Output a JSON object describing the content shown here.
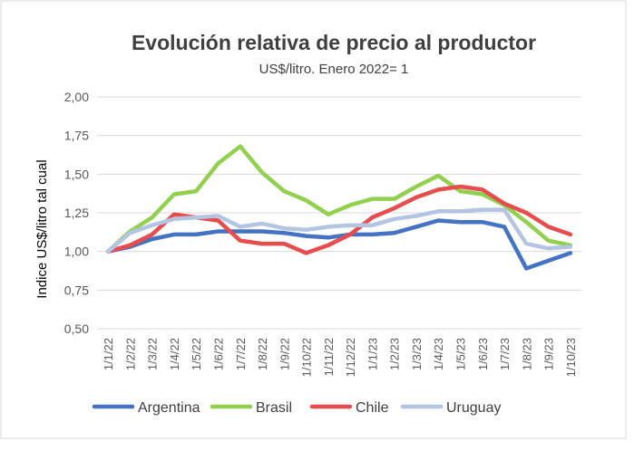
{
  "chart_data": {
    "type": "line",
    "title": "Evolución relativa de precio al productor",
    "subtitle": "US$/litro. Enero 2022= 1",
    "xlabel": "",
    "ylabel": "Indice US$/litro tal cual",
    "ylim": [
      0.5,
      2.0
    ],
    "yticks": [
      0.5,
      0.75,
      1.0,
      1.25,
      1.5,
      1.75,
      2.0
    ],
    "ytick_labels": [
      "0,50",
      "0,75",
      "1,00",
      "1,25",
      "1,50",
      "1,75",
      "2,00"
    ],
    "grid": true,
    "legend_position": "bottom",
    "categories": [
      "1/1/22",
      "1/2/22",
      "1/3/22",
      "1/4/22",
      "1/5/22",
      "1/6/22",
      "1/7/22",
      "1/8/22",
      "1/9/22",
      "1/10/22",
      "1/11/22",
      "1/12/22",
      "1/1/23",
      "1/2/23",
      "1/3/23",
      "1/4/23",
      "1/5/23",
      "1/6/23",
      "1/7/23",
      "1/8/23",
      "1/9/23",
      "1/10/23"
    ],
    "series": [
      {
        "name": "Argentina",
        "color": "#4472C4",
        "values": [
          1.0,
          1.03,
          1.08,
          1.11,
          1.11,
          1.13,
          1.13,
          1.13,
          1.12,
          1.1,
          1.09,
          1.11,
          1.11,
          1.12,
          1.16,
          1.2,
          1.19,
          1.19,
          1.16,
          0.89,
          0.94,
          0.99
        ]
      },
      {
        "name": "Brasil",
        "color": "#92D050",
        "values": [
          1.0,
          1.13,
          1.22,
          1.37,
          1.39,
          1.57,
          1.68,
          1.51,
          1.39,
          1.33,
          1.24,
          1.3,
          1.34,
          1.34,
          1.42,
          1.49,
          1.39,
          1.37,
          1.3,
          1.19,
          1.07,
          1.04
        ]
      },
      {
        "name": "Chile",
        "color": "#E84C4C",
        "values": [
          1.0,
          1.04,
          1.11,
          1.24,
          1.22,
          1.2,
          1.07,
          1.05,
          1.05,
          0.99,
          1.04,
          1.11,
          1.22,
          1.28,
          1.35,
          1.4,
          1.42,
          1.4,
          1.31,
          1.25,
          1.16,
          1.11
        ]
      },
      {
        "name": "Uruguay",
        "color": "#B4C5E4",
        "values": [
          1.0,
          1.12,
          1.17,
          1.21,
          1.22,
          1.23,
          1.16,
          1.18,
          1.15,
          1.14,
          1.16,
          1.17,
          1.17,
          1.21,
          1.23,
          1.26,
          1.26,
          1.27,
          1.27,
          1.05,
          1.02,
          1.03
        ]
      }
    ]
  }
}
